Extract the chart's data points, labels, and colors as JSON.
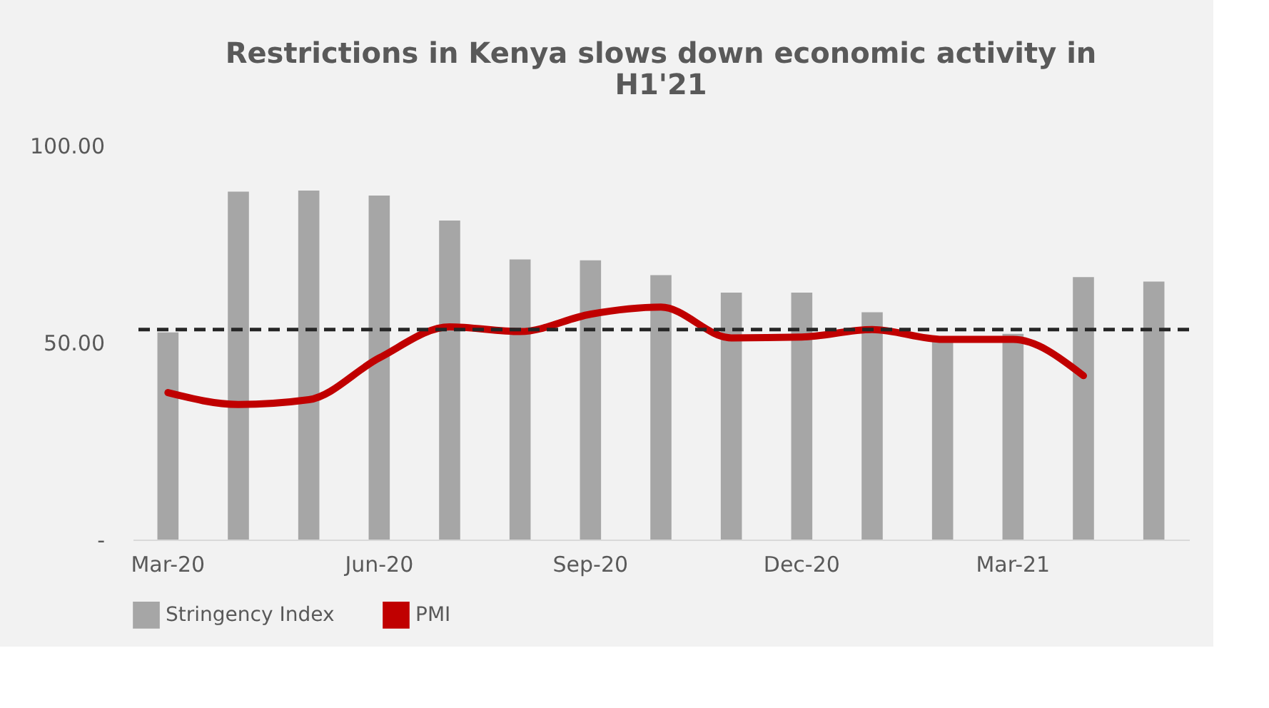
{
  "chart_data": {
    "type": "bar",
    "title": "Restrictions in Kenya slows down economic activity in H1'21",
    "categories": [
      "Mar-20",
      null,
      null,
      "Jun-20",
      null,
      null,
      "Sep-20",
      null,
      null,
      "Dec-20",
      null,
      null,
      "Mar-21",
      null,
      null
    ],
    "series": [
      {
        "name": "Stringency Index",
        "color": "#a6a6a6",
        "values": [
          52.6,
          88.3,
          88.6,
          87.3,
          81.0,
          71.1,
          70.9,
          67.1,
          62.7,
          62.7,
          57.7,
          50.6,
          52.2,
          66.6,
          65.5
        ]
      },
      {
        "name": "PMI",
        "type": "line",
        "color": "#c00000",
        "values": [
          37.3,
          34.3,
          35.5,
          46.1,
          54.0,
          52.8,
          57.2,
          59.0,
          51.2,
          51.4,
          53.3,
          50.8,
          50.8,
          41.6,
          null
        ]
      }
    ],
    "ylim": [
      0,
      100
    ],
    "yticks": [
      {
        "value": 0,
        "label": "-"
      },
      {
        "value": 50,
        "label": "50.00"
      },
      {
        "value": 100,
        "label": "100.00"
      }
    ],
    "ref_lines": [
      {
        "axis": "y",
        "value": 53.3,
        "color": "#262626",
        "line_style": "dashed"
      }
    ],
    "grid": false,
    "legend": "bottom"
  }
}
